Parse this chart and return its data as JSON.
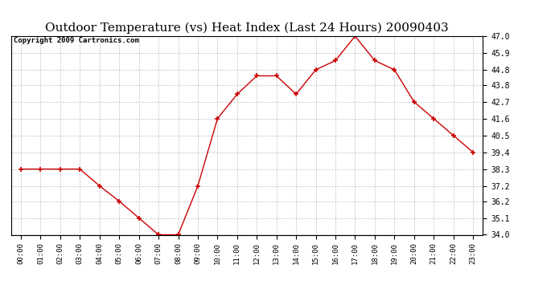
{
  "title": "Outdoor Temperature (vs) Heat Index (Last 24 Hours) 20090403",
  "copyright_text": "Copyright 2009 Cartronics.com",
  "x_labels": [
    "00:00",
    "01:00",
    "02:00",
    "03:00",
    "04:00",
    "05:00",
    "06:00",
    "07:00",
    "08:00",
    "09:00",
    "10:00",
    "11:00",
    "12:00",
    "13:00",
    "14:00",
    "15:00",
    "16:00",
    "17:00",
    "18:00",
    "19:00",
    "20:00",
    "21:00",
    "22:00",
    "23:00"
  ],
  "y_values": [
    38.3,
    38.3,
    38.3,
    38.3,
    37.2,
    36.2,
    35.1,
    34.0,
    34.0,
    37.2,
    41.6,
    43.2,
    44.4,
    44.4,
    43.2,
    44.8,
    45.4,
    47.0,
    45.4,
    44.8,
    42.7,
    41.6,
    40.5,
    39.4
  ],
  "line_color": "#cc0000",
  "marker_color": "#cc0000",
  "bg_color": "#ffffff",
  "grid_color": "#bbbbbb",
  "y_min": 34.0,
  "y_max": 47.0,
  "y_ticks": [
    34.0,
    35.1,
    36.2,
    37.2,
    38.3,
    39.4,
    40.5,
    41.6,
    42.7,
    43.8,
    44.8,
    45.9,
    47.0
  ],
  "title_fontsize": 11,
  "copyright_fontsize": 6.5
}
